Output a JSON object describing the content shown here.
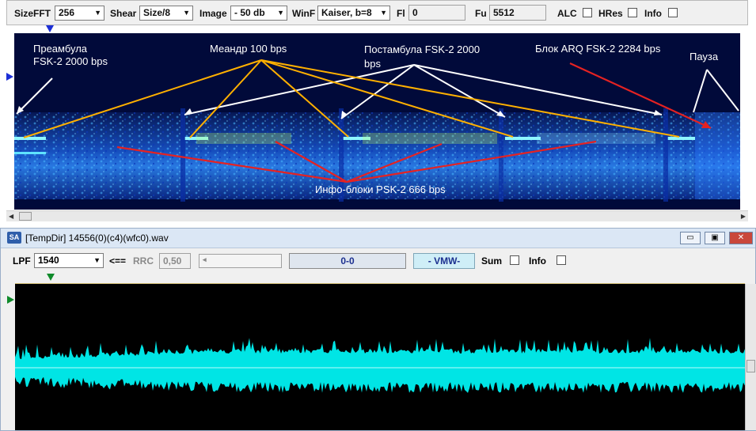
{
  "toolbar": {
    "sizefft_label": "SizeFFT",
    "sizefft_value": "256",
    "shear_label": "Shear",
    "shear_value": "Size/8",
    "image_label": "Image",
    "image_value": "- 50 db",
    "winf_label": "WinF",
    "winf_value": "Kaiser, b=8",
    "fl_label": "Fl",
    "fl_value": "0",
    "fu_label": "Fu",
    "fu_value": "5512",
    "alc_label": "ALC",
    "hres_label": "HRes",
    "info_label": "Info"
  },
  "annotations": {
    "preamble_1": "Преамбула",
    "preamble_2": "FSK-2 2000 bps",
    "meander": "Меандр 100 bps",
    "postamble_1": "Постамбула FSK-2 2000",
    "postamble_2": "bps",
    "arq": "Блок ARQ  FSK-2 2284 bps",
    "pause": "Пауза",
    "info_blocks": "Инфо-блоки PSK-2 666 bps"
  },
  "window": {
    "icon_text": "SA",
    "title": "[TempDir] 14556(0)(c4)(wfc0).wav",
    "minimize": "▭",
    "maximize": "▣",
    "close": "✕"
  },
  "controls": {
    "lpf_label": "LPF",
    "lpf_value": "1540",
    "arrow_label": "<==",
    "rrc_label": "RRC",
    "rrc_value": "0,50",
    "range_value": "0-0",
    "vmw_value": "- VMW-",
    "sum_label": "Sum",
    "info_label": "Info"
  },
  "colors": {
    "accent": "#1c2fd6",
    "annotation_yellow": "#ffb000",
    "annotation_white": "#ffffff",
    "annotation_red": "#e52222",
    "waveform": "#00e5e5",
    "vmw_bg": "#cfeef7"
  }
}
